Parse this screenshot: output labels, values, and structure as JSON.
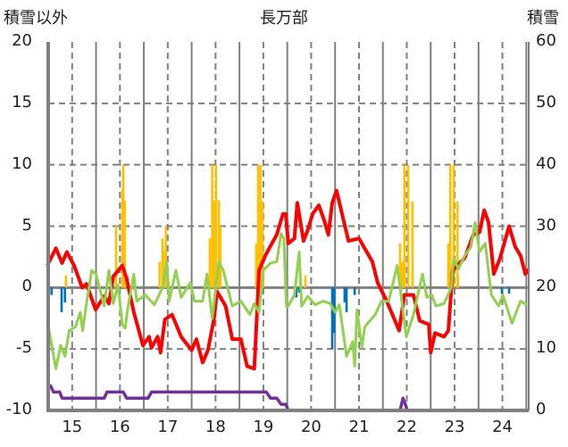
{
  "chart_data": {
    "type": "line",
    "title": "長万部",
    "ylabel_left": "積雪以外",
    "ylabel_right": "積雪",
    "xlim": [
      14.5,
      24.55
    ],
    "ylim_left": [
      -10,
      20
    ],
    "ylim_right": [
      0,
      60
    ],
    "x_ticks": [
      15,
      16,
      17,
      18,
      19,
      20,
      21,
      22,
      23,
      24
    ],
    "y_ticks_left": [
      20,
      15,
      10,
      5,
      0,
      -5,
      -10
    ],
    "y_ticks_right": [
      60,
      50,
      40,
      30,
      20,
      10,
      0
    ],
    "grid": true,
    "colors": {
      "red": "#ff0000",
      "green": "#92d050",
      "purple": "#7030a0",
      "orange": "#ffc000",
      "blue": "#0070c0",
      "grid": "#808080"
    },
    "series": [
      {
        "name": "red",
        "axis": "left",
        "color": "#ff0000",
        "points": [
          [
            14.48,
            1.8
          ],
          [
            14.66,
            3.2
          ],
          [
            14.79,
            2.0
          ],
          [
            14.89,
            2.9
          ],
          [
            15.04,
            1.8
          ],
          [
            15.21,
            0.0
          ],
          [
            15.3,
            0.3
          ],
          [
            15.49,
            -1.8
          ],
          [
            15.67,
            -0.7
          ],
          [
            15.77,
            -1.3
          ],
          [
            15.86,
            0.9
          ],
          [
            16.05,
            1.8
          ],
          [
            16.14,
            0.7
          ],
          [
            16.29,
            -2.0
          ],
          [
            16.48,
            -4.7
          ],
          [
            16.61,
            -4.0
          ],
          [
            16.66,
            -4.9
          ],
          [
            16.79,
            -4.0
          ],
          [
            16.85,
            -5.3
          ],
          [
            16.94,
            -2.6
          ],
          [
            17.09,
            -2.2
          ],
          [
            17.28,
            -4.0
          ],
          [
            17.5,
            -5.1
          ],
          [
            17.6,
            -4.2
          ],
          [
            17.73,
            -6.1
          ],
          [
            17.84,
            -5.1
          ],
          [
            17.97,
            -2.5
          ],
          [
            18.03,
            -0.3
          ],
          [
            18.21,
            -1.5
          ],
          [
            18.35,
            -4.2
          ],
          [
            18.53,
            -4.2
          ],
          [
            18.66,
            -6.4
          ],
          [
            18.81,
            -6.6
          ],
          [
            18.91,
            1.4
          ],
          [
            19.04,
            2.6
          ],
          [
            19.15,
            3.4
          ],
          [
            19.28,
            4.3
          ],
          [
            19.41,
            6.0
          ],
          [
            19.47,
            6.0
          ],
          [
            19.52,
            3.6
          ],
          [
            19.65,
            4.0
          ],
          [
            19.71,
            6.9
          ],
          [
            19.84,
            3.8
          ],
          [
            19.93,
            4.7
          ],
          [
            20.03,
            6.0
          ],
          [
            20.16,
            6.7
          ],
          [
            20.27,
            5.5
          ],
          [
            20.36,
            4.3
          ],
          [
            20.44,
            6.9
          ],
          [
            20.53,
            7.9
          ],
          [
            20.78,
            3.8
          ],
          [
            21.0,
            4.0
          ],
          [
            21.28,
            2.1
          ],
          [
            21.39,
            0.4
          ],
          [
            21.58,
            -1.1
          ],
          [
            21.84,
            -3.5
          ],
          [
            21.95,
            -0.6
          ],
          [
            22.14,
            -0.6
          ],
          [
            22.27,
            -2.7
          ],
          [
            22.46,
            -3.0
          ],
          [
            22.5,
            -5.3
          ],
          [
            22.59,
            -3.7
          ],
          [
            22.78,
            -4.0
          ],
          [
            22.87,
            -3.5
          ],
          [
            22.96,
            1.4
          ],
          [
            23.21,
            2.4
          ],
          [
            23.39,
            4.3
          ],
          [
            23.52,
            4.5
          ],
          [
            23.62,
            6.3
          ],
          [
            23.71,
            5.3
          ],
          [
            23.82,
            1.1
          ],
          [
            23.95,
            2.4
          ],
          [
            24.14,
            5.0
          ],
          [
            24.27,
            3.3
          ],
          [
            24.38,
            2.6
          ],
          [
            24.48,
            1.1
          ],
          [
            24.55,
            1.5
          ]
        ]
      },
      {
        "name": "green",
        "axis": "left",
        "color": "#92d050",
        "points": [
          [
            14.48,
            -2.7
          ],
          [
            14.66,
            -6.6
          ],
          [
            14.76,
            -4.7
          ],
          [
            14.85,
            -5.6
          ],
          [
            14.94,
            -3.5
          ],
          [
            15.07,
            -3.2
          ],
          [
            15.17,
            -2.0
          ],
          [
            15.22,
            -3.5
          ],
          [
            15.3,
            -1.3
          ],
          [
            15.41,
            1.4
          ],
          [
            15.5,
            1.1
          ],
          [
            15.67,
            -1.5
          ],
          [
            15.77,
            1.4
          ],
          [
            15.86,
            -1.3
          ],
          [
            15.96,
            0.2
          ],
          [
            16.05,
            -3.0
          ],
          [
            16.11,
            -3.3
          ],
          [
            16.16,
            -1.8
          ],
          [
            16.29,
            1.1
          ],
          [
            16.35,
            -1.1
          ],
          [
            16.53,
            -0.6
          ],
          [
            16.72,
            -1.4
          ],
          [
            16.89,
            0.0
          ],
          [
            16.98,
            2.1
          ],
          [
            17.03,
            -1.1
          ],
          [
            17.17,
            1.4
          ],
          [
            17.28,
            -0.8
          ],
          [
            17.47,
            0.4
          ],
          [
            17.56,
            -1.1
          ],
          [
            17.73,
            -1.1
          ],
          [
            17.82,
            1.1
          ],
          [
            17.93,
            -2.5
          ],
          [
            18.07,
            2.1
          ],
          [
            18.16,
            1.4
          ],
          [
            18.35,
            -1.5
          ],
          [
            18.53,
            -1.1
          ],
          [
            18.72,
            -2.2
          ],
          [
            18.81,
            -1.3
          ],
          [
            18.91,
            -2.0
          ],
          [
            19.0,
            1.4
          ],
          [
            19.15,
            2.0
          ],
          [
            19.28,
            2.1
          ],
          [
            19.37,
            4.4
          ],
          [
            19.43,
            4.0
          ],
          [
            19.48,
            -1.5
          ],
          [
            19.52,
            -1.5
          ],
          [
            19.65,
            -0.6
          ],
          [
            19.75,
            2.9
          ],
          [
            19.8,
            -1.5
          ],
          [
            19.93,
            -0.7
          ],
          [
            20.08,
            -1.4
          ],
          [
            20.25,
            -1.1
          ],
          [
            20.4,
            -1.3
          ],
          [
            20.5,
            -2.0
          ],
          [
            20.59,
            -1.4
          ],
          [
            20.74,
            -5.6
          ],
          [
            20.87,
            -4.4
          ],
          [
            20.91,
            -6.4
          ],
          [
            20.96,
            -1.8
          ],
          [
            21.06,
            -4.9
          ],
          [
            21.12,
            -3.2
          ],
          [
            21.34,
            -2.2
          ],
          [
            21.47,
            -1.1
          ],
          [
            21.62,
            -1.1
          ],
          [
            21.8,
            1.8
          ],
          [
            21.86,
            0.0
          ],
          [
            21.99,
            -4.0
          ],
          [
            22.14,
            -2.2
          ],
          [
            22.23,
            -0.6
          ],
          [
            22.33,
            1.1
          ],
          [
            22.42,
            -0.8
          ],
          [
            22.52,
            -0.6
          ],
          [
            22.61,
            -1.5
          ],
          [
            22.78,
            -1.3
          ],
          [
            22.93,
            0.0
          ],
          [
            22.98,
            2.4
          ],
          [
            23.08,
            1.5
          ],
          [
            23.21,
            2.6
          ],
          [
            23.34,
            3.3
          ],
          [
            23.43,
            5.3
          ],
          [
            23.52,
            2.9
          ],
          [
            23.64,
            3.6
          ],
          [
            23.77,
            -0.6
          ],
          [
            23.92,
            -1.5
          ],
          [
            24.01,
            -0.6
          ],
          [
            24.2,
            -2.9
          ],
          [
            24.38,
            -1.1
          ],
          [
            24.51,
            -1.4
          ]
        ]
      },
      {
        "name": "purple",
        "axis": "right",
        "color": "#7030a0",
        "points": [
          [
            14.48,
            4
          ],
          [
            14.55,
            4
          ],
          [
            14.61,
            3
          ],
          [
            14.74,
            3
          ],
          [
            14.79,
            2
          ],
          [
            15.67,
            2
          ],
          [
            15.73,
            3
          ],
          [
            16.07,
            3
          ],
          [
            16.14,
            2
          ],
          [
            16.59,
            2
          ],
          [
            16.66,
            3
          ],
          [
            19.06,
            3
          ],
          [
            19.15,
            2
          ],
          [
            19.28,
            2
          ],
          [
            19.37,
            1
          ],
          [
            19.47,
            1
          ],
          [
            19.52,
            0
          ],
          [
            21.86,
            0
          ],
          [
            21.92,
            2
          ],
          [
            21.97,
            1
          ],
          [
            22.01,
            0
          ],
          [
            24.55,
            0
          ]
        ]
      }
    ],
    "bars_orange": {
      "axis": "left",
      "color": "#ffc000",
      "points": [
        [
          14.87,
          1.0
        ],
        [
          15.92,
          5.0
        ],
        [
          16.05,
          8.0
        ],
        [
          16.07,
          10
        ],
        [
          16.1,
          7.1
        ],
        [
          16.16,
          1.0
        ],
        [
          16.83,
          2.1
        ],
        [
          16.89,
          4.0
        ],
        [
          16.91,
          3.0
        ],
        [
          16.96,
          5.0
        ],
        [
          17.88,
          4.0
        ],
        [
          17.93,
          10
        ],
        [
          17.97,
          7.1
        ],
        [
          18.01,
          10
        ],
        [
          18.07,
          7.1
        ],
        [
          18.1,
          5.0
        ],
        [
          18.85,
          3.6
        ],
        [
          18.89,
          10
        ],
        [
          18.94,
          10
        ],
        [
          18.98,
          7.0
        ],
        [
          19.0,
          1.0
        ],
        [
          19.88,
          1.0
        ],
        [
          21.86,
          3.6
        ],
        [
          21.9,
          2.1
        ],
        [
          21.95,
          10
        ],
        [
          22.03,
          10
        ],
        [
          22.12,
          7.0
        ],
        [
          22.87,
          3.6
        ],
        [
          22.91,
          10
        ],
        [
          22.98,
          10
        ],
        [
          23.06,
          7.0
        ],
        [
          23.07,
          1.0
        ]
      ]
    },
    "bars_blue": {
      "axis": "left",
      "color": "#0070c0",
      "points": [
        [
          14.57,
          -0.6
        ],
        [
          14.78,
          -2.0
        ],
        [
          14.85,
          -1.2
        ],
        [
          19.69,
          -0.8
        ],
        [
          19.75,
          -0.4
        ],
        [
          20.44,
          -5.0
        ],
        [
          20.48,
          -3.7
        ],
        [
          20.7,
          -1.2
        ],
        [
          20.74,
          -2.0
        ],
        [
          20.91,
          -0.6
        ],
        [
          23.99,
          -0.5
        ],
        [
          24.14,
          -0.5
        ]
      ]
    }
  }
}
